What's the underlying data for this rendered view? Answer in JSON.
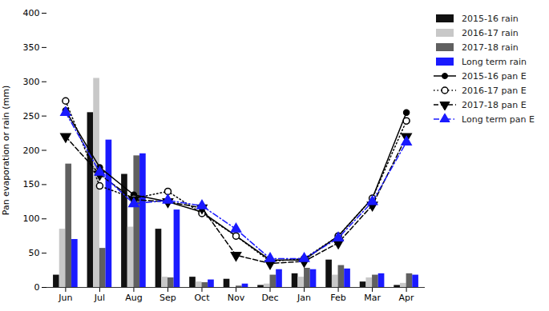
{
  "chart_data": {
    "type": "bar",
    "categories": [
      "Jun",
      "Jul",
      "Aug",
      "Sep",
      "Oct",
      "Nov",
      "Dec",
      "Jan",
      "Feb",
      "Mar",
      "Apr"
    ],
    "series": [
      {
        "name": "2015-16 rain",
        "type": "bar",
        "color": "#111111",
        "values": [
          18,
          255,
          165,
          85,
          15,
          12,
          3,
          20,
          40,
          8,
          3
        ]
      },
      {
        "name": "2016-17 rain",
        "type": "bar",
        "color": "#c8c8c8",
        "values": [
          85,
          305,
          88,
          15,
          8,
          0,
          5,
          15,
          18,
          14,
          6
        ]
      },
      {
        "name": "2017-18 rain",
        "type": "bar",
        "color": "#606060",
        "values": [
          180,
          57,
          192,
          14,
          7,
          2,
          18,
          28,
          32,
          18,
          20
        ]
      },
      {
        "name": "Long term rain",
        "type": "bar",
        "color": "#1a1aff",
        "values": [
          70,
          215,
          195,
          113,
          11,
          5,
          26,
          26,
          27,
          20,
          18
        ]
      },
      {
        "name": "2015-16 pan E",
        "type": "line",
        "color": "#000000",
        "marker": "circle",
        "line_style": "solid",
        "values": [
          258,
          175,
          135,
          125,
          110,
          75,
          40,
          40,
          75,
          130,
          255
        ]
      },
      {
        "name": "2016-17 pan E",
        "type": "line",
        "color": "#000000",
        "marker": "open_circle",
        "line_style": "dotted",
        "values": [
          272,
          148,
          130,
          140,
          108,
          75,
          38,
          42,
          75,
          130,
          243
        ]
      },
      {
        "name": "2017-18 pan E",
        "type": "line",
        "color": "#000000",
        "marker": "triangle_down",
        "line_style": "dashed",
        "values": [
          220,
          165,
          128,
          125,
          116,
          47,
          35,
          38,
          65,
          120,
          220
        ]
      },
      {
        "name": "Long term pan E",
        "type": "line",
        "color": "#1a1aff",
        "marker": "triangle_up",
        "line_style": "dashdot",
        "values": [
          255,
          168,
          122,
          127,
          119,
          85,
          42,
          42,
          72,
          125,
          212
        ]
      }
    ],
    "ylabel": "Pan evaporation or rain (mm)",
    "ylim": [
      0,
      400
    ],
    "yticks": [
      0,
      50,
      100,
      150,
      200,
      250,
      300,
      350,
      400
    ],
    "grid": false,
    "legend": "upper right"
  }
}
